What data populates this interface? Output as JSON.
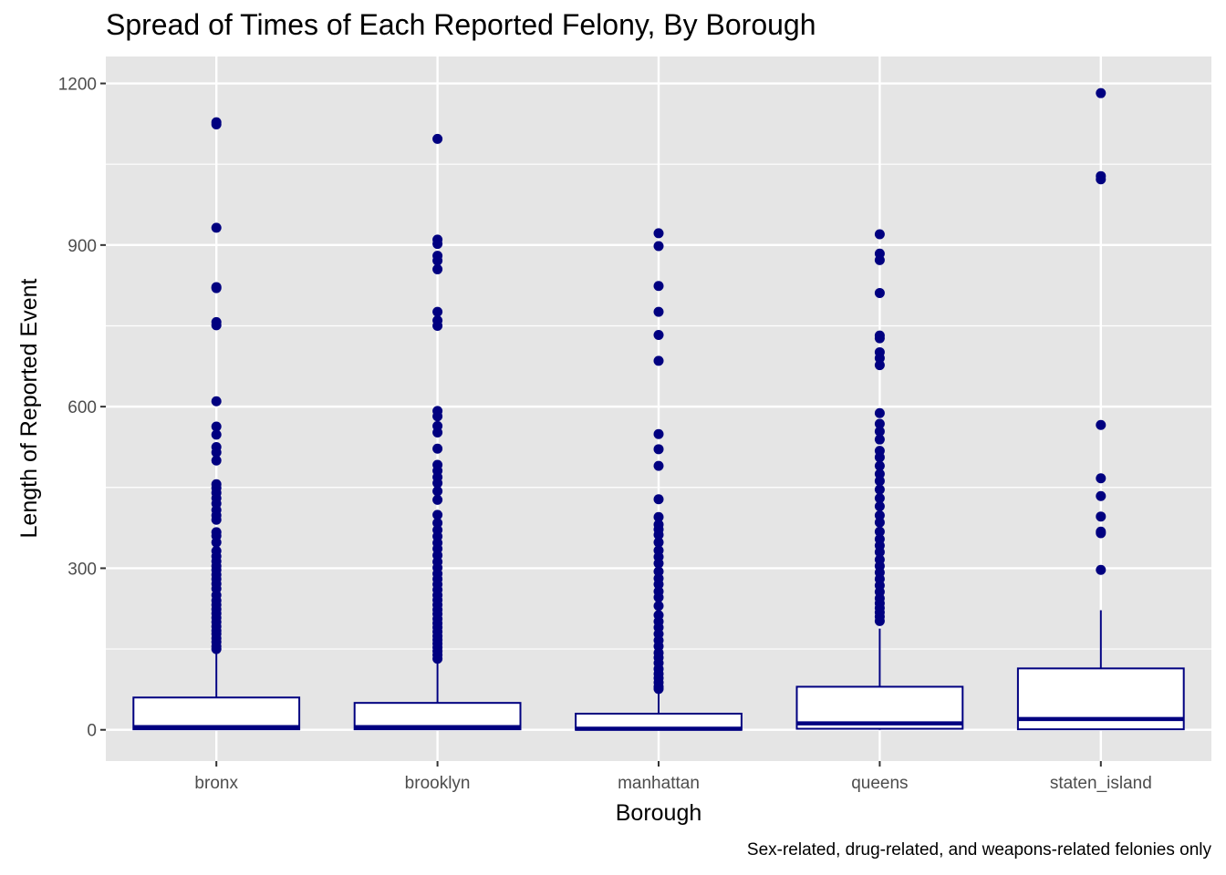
{
  "chart_data": {
    "type": "boxplot",
    "title": "Spread of Times of Each Reported Felony, By Borough",
    "xlabel": "Borough",
    "ylabel": "Length of Reported Event",
    "caption": "Sex-related, drug-related, and weapons-related felonies only",
    "categories": [
      "bronx",
      "brooklyn",
      "manhattan",
      "queens",
      "staten_island"
    ],
    "ylim": [
      -58,
      1250
    ],
    "yticks": [
      0,
      300,
      600,
      900,
      1200
    ],
    "grid": true,
    "legend": "none",
    "colors": {
      "panel": "#e5e5e5",
      "grid": "#ffffff",
      "box_stroke": "#000080",
      "box_fill": "#ffffff",
      "outlier": "#000080",
      "tick_label": "#4d4d4d"
    },
    "boxes": [
      {
        "category": "bronx",
        "lower_whisker": 0,
        "q1": 1,
        "median": 5,
        "q3": 60,
        "upper_whisker": 148,
        "outliers": [
          1128,
          1124,
          932,
          822,
          820,
          757,
          751,
          610,
          563,
          548,
          525,
          515,
          500,
          456,
          449,
          440,
          430,
          420,
          408,
          398,
          390,
          367,
          360,
          348,
          332,
          322,
          313,
          304,
          297,
          288,
          280,
          271,
          262,
          250,
          240,
          232,
          224,
          216,
          208,
          200,
          192,
          184,
          178,
          170,
          163,
          155,
          150
        ]
      },
      {
        "category": "brooklyn",
        "lower_whisker": 0,
        "q1": 1,
        "median": 5,
        "q3": 50,
        "upper_whisker": 128,
        "outliers": [
          1097,
          910,
          902,
          880,
          871,
          855,
          776,
          760,
          750,
          592,
          582,
          564,
          552,
          522,
          492,
          481,
          469,
          458,
          443,
          427,
          399,
          384,
          371,
          359,
          347,
          336,
          324,
          312,
          301,
          290,
          280,
          270,
          260,
          250,
          241,
          232,
          223,
          215,
          206,
          198,
          190,
          182,
          174,
          167,
          160,
          153,
          146,
          139,
          132
        ]
      },
      {
        "category": "manhattan",
        "lower_whisker": 0,
        "q1": 0,
        "median": 2,
        "q3": 30,
        "upper_whisker": 74,
        "outliers": [
          922,
          898,
          824,
          776,
          733,
          685,
          549,
          521,
          490,
          428,
          395,
          381,
          372,
          362,
          348,
          333,
          321,
          309,
          294,
          281,
          270,
          257,
          246,
          230,
          213,
          201,
          190,
          178,
          166,
          155,
          143,
          134,
          124,
          113,
          104,
          96,
          88,
          80,
          76
        ]
      },
      {
        "category": "queens",
        "lower_whisker": 0,
        "q1": 2,
        "median": 12,
        "q3": 80,
        "upper_whisker": 188,
        "outliers": [
          920,
          884,
          872,
          811,
          732,
          727,
          701,
          690,
          677,
          588,
          568,
          554,
          539,
          518,
          506,
          490,
          475,
          462,
          446,
          430,
          415,
          398,
          385,
          368,
          354,
          342,
          330,
          316,
          304,
          292,
          280,
          268,
          256,
          244,
          235,
          226,
          218,
          210,
          202
        ]
      },
      {
        "category": "staten_island",
        "lower_whisker": 0,
        "q1": 1,
        "median": 20,
        "q3": 114,
        "upper_whisker": 222,
        "outliers": [
          1182,
          1028,
          1022,
          566,
          467,
          434,
          396,
          368,
          365,
          297
        ]
      }
    ]
  }
}
